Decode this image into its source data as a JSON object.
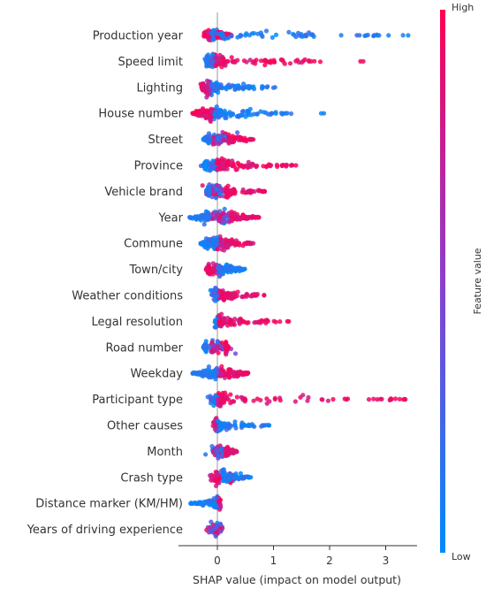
{
  "chart_data": {
    "type": "scatter",
    "subtype": "shap-beeswarm-summary",
    "title": "",
    "xlabel": "SHAP value (impact on model output)",
    "ylabel": "",
    "xlim": [
      -0.7,
      3.55
    ],
    "xticks": [
      0,
      1,
      2,
      3
    ],
    "zero_line": true,
    "grid": false,
    "colorbar": {
      "label": "Feature value",
      "high_label": "High",
      "low_label": "Low",
      "high_color": "#ff0052",
      "low_color": "#008bfb",
      "placement": "right"
    },
    "features": [
      {
        "name": "Production year",
        "core": [
          -0.22,
          0.0
        ],
        "high_end": 0.25,
        "low_end": 3.4,
        "low_side": "right",
        "high_side": "left",
        "outliers_low": [
          2.65,
          2.85,
          3.05,
          3.4
        ]
      },
      {
        "name": "Speed limit",
        "core": [
          -0.18,
          0.05
        ],
        "high_end": 1.9,
        "low_end": -0.2,
        "low_side": "left",
        "high_side": "right",
        "outliers_high": [
          2.55,
          2.6
        ]
      },
      {
        "name": "Lighting",
        "core": [
          -0.25,
          0.0
        ],
        "high_end": -0.28,
        "low_end": 1.1,
        "low_side": "right",
        "high_side": "left"
      },
      {
        "name": "House number",
        "core": [
          -0.2,
          0.05
        ],
        "high_end": -0.45,
        "low_end": 1.4,
        "low_side": "right",
        "high_side": "left",
        "outliers_low": [
          1.85,
          1.9
        ]
      },
      {
        "name": "Street",
        "core": [
          -0.15,
          0.2
        ],
        "high_end": 0.65,
        "low_end": -0.25,
        "low_side": "mixed",
        "high_side": "right"
      },
      {
        "name": "Province",
        "core": [
          -0.2,
          0.15
        ],
        "high_end": 1.35,
        "low_end": -0.25,
        "low_side": "left",
        "high_side": "right",
        "outliers_high": [
          1.15,
          1.4
        ]
      },
      {
        "name": "Vehicle brand",
        "core": [
          -0.15,
          0.15
        ],
        "high_end": 0.85,
        "low_end": -0.2,
        "low_side": "mixed",
        "high_side": "right"
      },
      {
        "name": "Year",
        "core": [
          -0.15,
          0.25
        ],
        "high_end": 0.75,
        "low_end": -0.5,
        "low_side": "mixed",
        "high_side": "mixed"
      },
      {
        "name": "Commune",
        "core": [
          -0.15,
          0.15
        ],
        "high_end": 0.65,
        "low_end": -0.3,
        "low_side": "left",
        "high_side": "right"
      },
      {
        "name": "Town/city",
        "core": [
          -0.15,
          0.15
        ],
        "high_end": -0.2,
        "low_end": 0.5,
        "low_side": "right",
        "high_side": "left"
      },
      {
        "name": "Weather conditions",
        "core": [
          -0.1,
          0.1
        ],
        "high_end": 0.85,
        "low_end": -0.1,
        "low_side": "left",
        "high_side": "right"
      },
      {
        "name": "Legal resolution",
        "core": [
          -0.05,
          0.1
        ],
        "high_end": 1.3,
        "low_end": -0.05,
        "low_side": "left",
        "high_side": "right"
      },
      {
        "name": "Road number",
        "core": [
          -0.2,
          0.15
        ],
        "high_end": 0.2,
        "low_end": -0.25,
        "low_side": "mixed",
        "high_side": "mixed"
      },
      {
        "name": "Weekday",
        "core": [
          -0.15,
          0.2
        ],
        "high_end": 0.55,
        "low_end": -0.45,
        "low_side": "left",
        "high_side": "right"
      },
      {
        "name": "Participant type",
        "core": [
          -0.1,
          0.1
        ],
        "high_end": 3.35,
        "low_end": -0.1,
        "low_side": "left",
        "high_side": "right",
        "outliers_high": [
          2.3,
          2.7,
          2.85,
          3.1,
          3.35
        ]
      },
      {
        "name": "Other causes",
        "core": [
          -0.05,
          0.05
        ],
        "high_end": -0.05,
        "low_end": 0.95,
        "low_side": "right",
        "high_side": "left"
      },
      {
        "name": "Month",
        "core": [
          -0.1,
          0.15
        ],
        "high_end": 0.35,
        "low_end": -0.1,
        "low_side": "mixed",
        "high_side": "right"
      },
      {
        "name": "Crash type",
        "core": [
          -0.1,
          0.2
        ],
        "high_end": 0.35,
        "low_end": 0.6,
        "low_side": "right",
        "high_side": "mixed"
      },
      {
        "name": "Distance marker (KM/HM)",
        "core": [
          -0.05,
          0.05
        ],
        "high_end": 0.05,
        "low_end": -0.5,
        "low_side": "left",
        "high_side": "right"
      },
      {
        "name": "Years of driving experience",
        "core": [
          -0.15,
          0.1
        ],
        "high_end": 0.1,
        "low_end": -0.15,
        "low_side": "mixed",
        "high_side": "mixed"
      }
    ]
  }
}
